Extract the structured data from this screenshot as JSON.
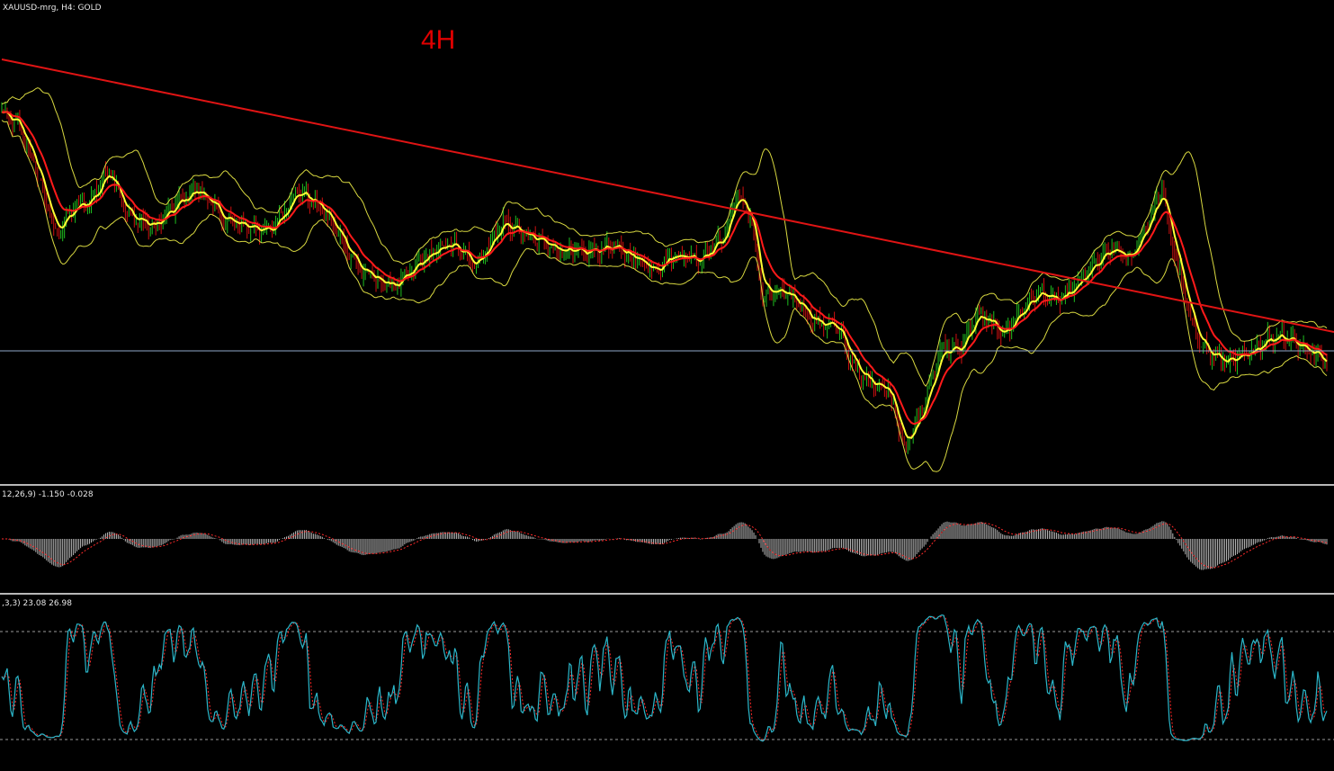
{
  "chart_window": {
    "symbol_label": "XAUUSD-mrg, H4:  GOLD",
    "timeframe_annotation": "4H"
  },
  "colors": {
    "background": "#000000",
    "bull_bar": "#1fbf1f",
    "bear_bar": "#d01010",
    "trendline": "#e01414",
    "fast_ma": "#ffff33",
    "slow_ma": "#ff1a1a",
    "bollinger": "#d8d840",
    "support_line": "#8fa7c8",
    "macd_hist": "#b8b8b8",
    "macd_signal": "#ff2a2a",
    "stoch_main": "#2bb6c9",
    "stoch_signal": "#ff2a2a",
    "pane_separator": "#b8b8b8"
  },
  "indicators": {
    "macd_label": "12,26,9) -1.150 -0.028",
    "stoch_label": ",3,3) 23.08 26.98"
  },
  "chart_data": {
    "type": "line",
    "note_x": "bar index 0-740 (4-hour bars, left to right)",
    "price_pane": {
      "close_series_name": "",
      "y_normalized_range": [
        0,
        100
      ],
      "close_points": [
        [
          0,
          80
        ],
        [
          10,
          75
        ],
        [
          20,
          58
        ],
        [
          30,
          35
        ],
        [
          40,
          45
        ],
        [
          50,
          48
        ],
        [
          60,
          60
        ],
        [
          70,
          42
        ],
        [
          85,
          38
        ],
        [
          100,
          48
        ],
        [
          110,
          52
        ],
        [
          125,
          40
        ],
        [
          140,
          38
        ],
        [
          150,
          36
        ],
        [
          165,
          52
        ],
        [
          180,
          44
        ],
        [
          190,
          33
        ],
        [
          200,
          22
        ],
        [
          210,
          18
        ],
        [
          220,
          16
        ],
        [
          235,
          26
        ],
        [
          250,
          32
        ],
        [
          265,
          24
        ],
        [
          280,
          40
        ],
        [
          295,
          34
        ],
        [
          310,
          30
        ],
        [
          325,
          28
        ],
        [
          340,
          31
        ],
        [
          355,
          26
        ],
        [
          365,
          22
        ],
        [
          375,
          28
        ],
        [
          390,
          26
        ],
        [
          405,
          36
        ],
        [
          410,
          52
        ],
        [
          418,
          42
        ],
        [
          425,
          12
        ],
        [
          435,
          14
        ],
        [
          445,
          10
        ],
        [
          455,
          2
        ],
        [
          465,
          2
        ],
        [
          480,
          -18
        ],
        [
          495,
          -22
        ],
        [
          505,
          -44
        ],
        [
          515,
          -28
        ],
        [
          525,
          -6
        ],
        [
          535,
          -8
        ],
        [
          545,
          6
        ],
        [
          560,
          -2
        ],
        [
          570,
          8
        ],
        [
          580,
          14
        ],
        [
          590,
          10
        ],
        [
          600,
          16
        ],
        [
          610,
          24
        ],
        [
          620,
          30
        ],
        [
          630,
          26
        ],
        [
          640,
          40
        ],
        [
          648,
          52
        ],
        [
          655,
          28
        ],
        [
          665,
          0
        ],
        [
          675,
          -10
        ],
        [
          685,
          -12
        ],
        [
          695,
          -10
        ],
        [
          705,
          -4
        ],
        [
          715,
          -2
        ],
        [
          725,
          -6
        ],
        [
          735,
          -10
        ],
        [
          740,
          -12
        ]
      ],
      "support_level_y": -8
    },
    "trendline": {
      "from": [
        0,
        100
      ],
      "to": [
        740,
        -1
      ]
    },
    "macd": {
      "label": "12,26,9) -1.150 -0.028",
      "current_main": -1.15,
      "current_signal": -0.028
    },
    "stochastic": {
      "label": ",3,3) 23.08 26.98",
      "current_main": 23.08,
      "current_signal": 26.98,
      "levels": [
        80,
        20
      ]
    }
  }
}
